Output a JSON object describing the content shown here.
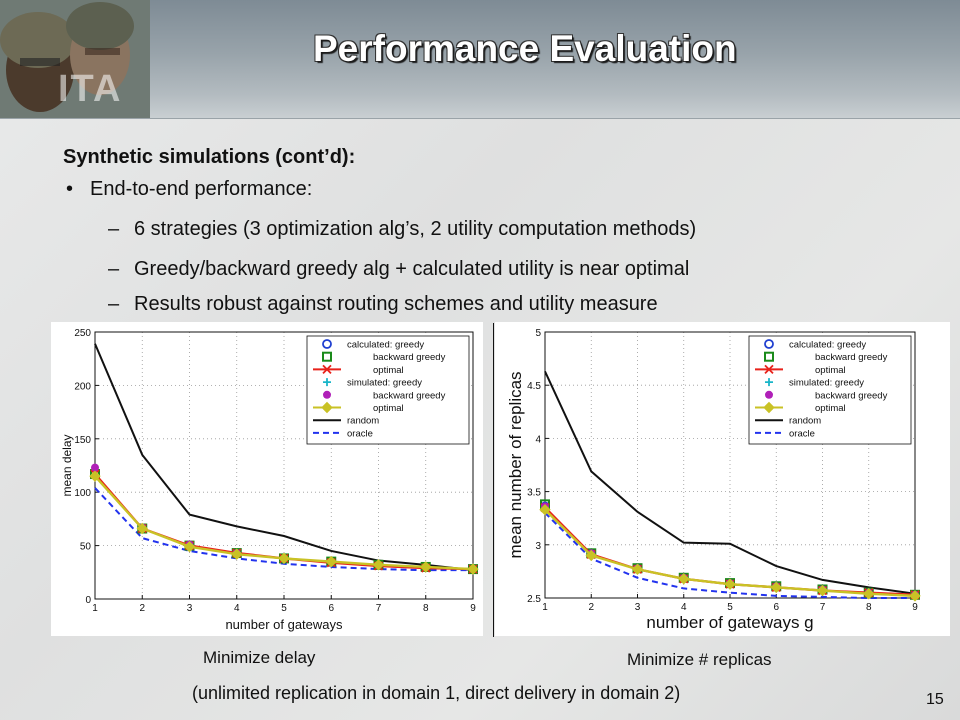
{
  "slide": {
    "title": "Performance Evaluation",
    "logo_text": "ITA",
    "subheading": "Synthetic simulations (cont’d):",
    "bullet": "End-to-end performance:",
    "subbullets": [
      "6 strategies (3 optimization alg’s, 2 utility computation methods)",
      "Greedy/backward greedy alg + calculated utility is near optimal",
      "Results robust against routing schemes and utility measure"
    ],
    "caption_left": "Minimize delay",
    "caption_right": "Minimize # replicas",
    "note": "(unlimited replication in domain 1, direct delivery in domain 2)",
    "page_number": "15"
  },
  "chart_data": [
    {
      "type": "line",
      "xlabel": "number of gateways",
      "ylabel": "mean delay",
      "x": [
        1,
        2,
        3,
        4,
        5,
        6,
        7,
        8,
        9
      ],
      "xlim": [
        1,
        9
      ],
      "ylim": [
        0,
        250
      ],
      "yticks": [
        0,
        50,
        100,
        150,
        200,
        250
      ],
      "grid": true,
      "legend_position": "top-right",
      "legend_labels": [
        "calculated: greedy",
        "backward greedy",
        "optimal",
        "simulated: greedy",
        "backward greedy",
        "optimal",
        "random",
        "oracle"
      ],
      "series": [
        {
          "name": "calculated: greedy",
          "color": "#1f3fd0",
          "marker": "circle",
          "line": "none",
          "values": [
            118,
            66,
            50,
            43,
            38,
            35,
            32,
            30,
            28
          ]
        },
        {
          "name": "backward greedy",
          "color": "#1a8a1a",
          "marker": "square",
          "line": "none",
          "values": [
            117,
            66,
            50,
            43,
            38,
            35,
            32,
            30,
            28
          ]
        },
        {
          "name": "optimal",
          "color": "#e8221a",
          "marker": "x",
          "line": "solid",
          "values": [
            117,
            66,
            50,
            43,
            38,
            34,
            31,
            29,
            28
          ]
        },
        {
          "name": "simulated: greedy",
          "color": "#19b5c8",
          "marker": "plus",
          "line": "none",
          "values": [
            116,
            66,
            50,
            43,
            38,
            35,
            32,
            30,
            28
          ]
        },
        {
          "name": "backward greedy",
          "color": "#b020b8",
          "marker": "dot",
          "line": "none",
          "values": [
            123,
            67,
            51,
            43,
            38,
            35,
            32,
            30,
            28
          ]
        },
        {
          "name": "optimal",
          "color": "#c9c225",
          "marker": "diamond",
          "line": "solid",
          "values": [
            115,
            66,
            49,
            42,
            38,
            35,
            32,
            30,
            28
          ]
        },
        {
          "name": "random",
          "color": "#111111",
          "marker": "none",
          "line": "solid",
          "values": [
            239,
            135,
            79,
            68,
            59,
            45,
            36,
            32,
            27
          ]
        },
        {
          "name": "oracle",
          "color": "#2233ee",
          "marker": "none",
          "line": "dashed",
          "values": [
            104,
            57,
            45,
            38,
            33,
            30,
            28,
            27,
            27
          ]
        }
      ]
    },
    {
      "type": "line",
      "xlabel": "number of gateways g",
      "ylabel": "mean number of replicas",
      "x": [
        1,
        2,
        3,
        4,
        5,
        6,
        7,
        8,
        9
      ],
      "xlim": [
        1,
        9
      ],
      "ylim": [
        2.5,
        5
      ],
      "yticks": [
        2.5,
        3,
        3.5,
        4,
        4.5,
        5
      ],
      "grid": true,
      "legend_position": "top-right",
      "legend_labels": [
        "calculated: greedy",
        "backward greedy",
        "optimal",
        "simulated: greedy",
        "backward greedy",
        "optimal",
        "random",
        "oracle"
      ],
      "series": [
        {
          "name": "calculated: greedy",
          "color": "#1f3fd0",
          "marker": "circle",
          "line": "none",
          "values": [
            3.36,
            2.91,
            2.78,
            2.69,
            2.64,
            2.61,
            2.58,
            2.55,
            2.53
          ]
        },
        {
          "name": "backward greedy",
          "color": "#1a8a1a",
          "marker": "square",
          "line": "none",
          "values": [
            3.38,
            2.92,
            2.78,
            2.69,
            2.64,
            2.61,
            2.58,
            2.55,
            2.53
          ]
        },
        {
          "name": "optimal",
          "color": "#e8221a",
          "marker": "x",
          "line": "solid",
          "values": [
            3.35,
            2.91,
            2.77,
            2.68,
            2.63,
            2.6,
            2.57,
            2.55,
            2.53
          ]
        },
        {
          "name": "simulated: greedy",
          "color": "#19b5c8",
          "marker": "plus",
          "line": "none",
          "values": [
            3.34,
            2.91,
            2.78,
            2.69,
            2.64,
            2.61,
            2.58,
            2.55,
            2.53
          ]
        },
        {
          "name": "backward greedy",
          "color": "#b020b8",
          "marker": "dot",
          "line": "none",
          "values": [
            3.36,
            2.92,
            2.78,
            2.69,
            2.64,
            2.61,
            2.58,
            2.55,
            2.53
          ]
        },
        {
          "name": "optimal",
          "color": "#c9c225",
          "marker": "diamond",
          "line": "solid",
          "values": [
            3.33,
            2.9,
            2.77,
            2.68,
            2.63,
            2.6,
            2.57,
            2.54,
            2.52
          ]
        },
        {
          "name": "random",
          "color": "#111111",
          "marker": "none",
          "line": "solid",
          "values": [
            4.63,
            3.69,
            3.31,
            3.02,
            3.01,
            2.8,
            2.67,
            2.6,
            2.54
          ]
        },
        {
          "name": "oracle",
          "color": "#2233ee",
          "marker": "none",
          "line": "dashed",
          "values": [
            3.3,
            2.87,
            2.69,
            2.59,
            2.55,
            2.52,
            2.51,
            2.5,
            2.5
          ]
        }
      ]
    }
  ]
}
